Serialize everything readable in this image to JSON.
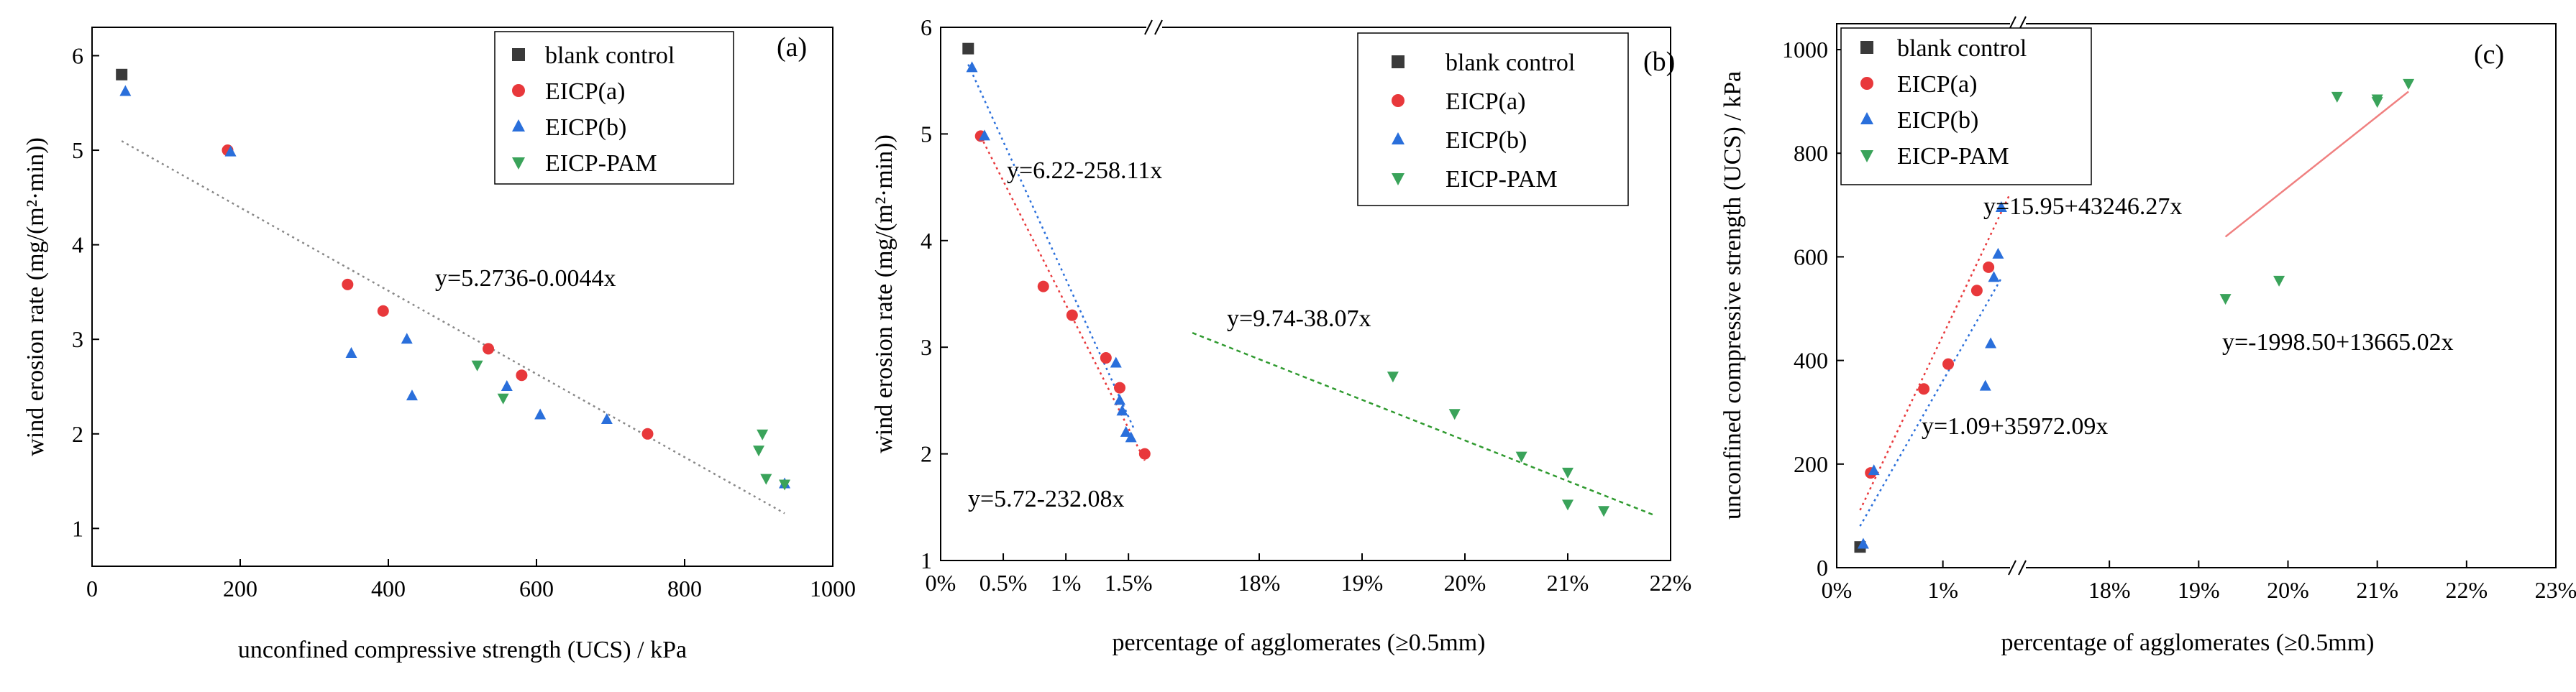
{
  "colors": {
    "blank_control": "#3a3a3a",
    "eicp_a": "#e8383b",
    "eicp_b": "#2a6fdb",
    "eicp_pam": "#3aa35a",
    "fit_gray": "#888888",
    "fit_red": "#e8383b",
    "fit_blue": "#2a6fdb",
    "fit_green": "#2f9a2f",
    "fit_pink": "#f08080"
  },
  "chart_data": [
    {
      "panel": "(a)",
      "type": "scatter",
      "xlabel": "unconfined compressive strength (UCS) / kPa",
      "ylabel": "wind erosion rate (mg/(m²·min))",
      "xlim": [
        0,
        1000
      ],
      "ylim": [
        0.6,
        6.3
      ],
      "xticks": [
        0,
        200,
        400,
        600,
        800,
        1000
      ],
      "yticks": [
        1,
        2,
        3,
        4,
        5,
        6
      ],
      "legend_position": "top-right",
      "legend": [
        "blank control",
        "EICP(a)",
        "EICP(b)",
        "EICP-PAM"
      ],
      "series": [
        {
          "name": "blank control",
          "marker": "square",
          "points": [
            [
              40,
              5.8
            ]
          ]
        },
        {
          "name": "EICP(a)",
          "marker": "circle",
          "points": [
            [
              183,
              5.0
            ],
            [
              345,
              3.58
            ],
            [
              393,
              3.3
            ],
            [
              535,
              2.9
            ],
            [
              580,
              2.62
            ],
            [
              750,
              2.0
            ]
          ]
        },
        {
          "name": "EICP(b)",
          "marker": "triangle-up",
          "points": [
            [
              45,
              5.62
            ],
            [
              187,
              4.98
            ],
            [
              350,
              2.85
            ],
            [
              425,
              3.0
            ],
            [
              432,
              2.4
            ],
            [
              560,
              2.5
            ],
            [
              605,
              2.2
            ],
            [
              695,
              2.15
            ],
            [
              935,
              1.47
            ]
          ]
        },
        {
          "name": "EICP-PAM",
          "marker": "triangle-down",
          "points": [
            [
              520,
              2.73
            ],
            [
              555,
              2.38
            ],
            [
              900,
              1.83
            ],
            [
              905,
              2.0
            ],
            [
              910,
              1.53
            ],
            [
              935,
              1.47
            ]
          ]
        }
      ],
      "fits": [
        {
          "label": "y=5.2736-0.0044x",
          "x_range": [
            40,
            935
          ],
          "intercept": 5.2736,
          "slope": -0.0044,
          "style": "dotted",
          "color_key": "fit_gray"
        }
      ]
    },
    {
      "panel": "(b)",
      "type": "scatter",
      "xlabel": "percentage of agglomerates (≥0.5mm)",
      "ylabel": "wind erosion rate (mg/(m²·min))",
      "x_segments": [
        [
          0.0,
          0.017
        ],
        [
          0.17,
          0.22
        ]
      ],
      "ylim": [
        1,
        6
      ],
      "xticks": [
        "0%",
        "0.5%",
        "1%",
        "1.5%",
        "18%",
        "19%",
        "20%",
        "21%",
        "22%"
      ],
      "xtick_values": [
        0.0,
        0.005,
        0.01,
        0.015,
        0.18,
        0.19,
        0.2,
        0.21,
        0.22
      ],
      "yticks": [
        1,
        2,
        3,
        4,
        5,
        6
      ],
      "legend_position": "top-right",
      "legend": [
        "blank control",
        "EICP(a)",
        "EICP(b)",
        "EICP-PAM"
      ],
      "series": [
        {
          "name": "blank control",
          "marker": "square",
          "points": [
            [
              0.0022,
              5.8
            ]
          ]
        },
        {
          "name": "EICP(a)",
          "marker": "circle",
          "points": [
            [
              0.0032,
              4.98
            ],
            [
              0.0082,
              3.57
            ],
            [
              0.0105,
              3.3
            ],
            [
              0.0132,
              2.9
            ],
            [
              0.0143,
              2.62
            ],
            [
              0.0163,
              2.0
            ]
          ]
        },
        {
          "name": "EICP(b)",
          "marker": "triangle-up",
          "points": [
            [
              0.0025,
              5.62
            ],
            [
              0.0035,
              4.98
            ],
            [
              0.014,
              2.85
            ],
            [
              0.0143,
              2.5
            ],
            [
              0.0145,
              2.4
            ],
            [
              0.0148,
              2.2
            ],
            [
              0.0152,
              2.15
            ]
          ]
        },
        {
          "name": "EICP-PAM",
          "marker": "triangle-down",
          "points": [
            [
              0.193,
              2.73
            ],
            [
              0.199,
              2.38
            ],
            [
              0.2055,
              1.98
            ],
            [
              0.21,
              1.83
            ],
            [
              0.21,
              1.53
            ],
            [
              0.2135,
              1.47
            ]
          ]
        }
      ],
      "fits": [
        {
          "label": "y=6.22-258.11x",
          "x_range": [
            0.0022,
            0.0155
          ],
          "intercept": 6.22,
          "slope": -258.11,
          "style": "dotted",
          "color_key": "fit_blue"
        },
        {
          "label": "y=5.72-232.08x",
          "x_range": [
            0.003,
            0.0163
          ],
          "intercept": 5.72,
          "slope": -232.08,
          "style": "dotted",
          "color_key": "fit_red"
        },
        {
          "label": "y=9.74-38.07x",
          "x_range": [
            0.1735,
            0.2185
          ],
          "intercept": 9.74,
          "slope": -38.07,
          "style": "dotted",
          "color_key": "fit_green"
        }
      ]
    },
    {
      "panel": "(c)",
      "type": "scatter",
      "xlabel": "percentage of agglomerates (≥0.5mm)",
      "ylabel": "unconfined compressive strength (UCS) / kPa",
      "x_segments": [
        [
          0.0,
          0.017
        ],
        [
          0.17,
          0.23
        ]
      ],
      "ylim": [
        0,
        1050
      ],
      "xticks": [
        "0%",
        "1%",
        "18%",
        "19%",
        "20%",
        "21%",
        "22%",
        "23%"
      ],
      "xtick_values": [
        0.0,
        0.01,
        0.18,
        0.19,
        0.2,
        0.21,
        0.22,
        0.23
      ],
      "yticks": [
        0,
        200,
        400,
        600,
        800,
        1000
      ],
      "legend_position": "top-left",
      "legend": [
        "blank control",
        "EICP(a)",
        "EICP(b)",
        "EICP-PAM"
      ],
      "series": [
        {
          "name": "blank control",
          "marker": "square",
          "points": [
            [
              0.0022,
              40
            ]
          ]
        },
        {
          "name": "EICP(a)",
          "marker": "circle",
          "points": [
            [
              0.0032,
              183
            ],
            [
              0.0082,
              345
            ],
            [
              0.0105,
              393
            ],
            [
              0.0132,
              535
            ],
            [
              0.0143,
              580
            ],
            [
              0.0163,
              750
            ]
          ]
        },
        {
          "name": "EICP(b)",
          "marker": "triangle-up",
          "points": [
            [
              0.0025,
              45
            ],
            [
              0.0035,
              187
            ],
            [
              0.014,
              350
            ],
            [
              0.0145,
              432
            ],
            [
              0.0148,
              560
            ],
            [
              0.0152,
              605
            ],
            [
              0.0155,
              695
            ]
          ]
        },
        {
          "name": "EICP-PAM",
          "marker": "triangle-down",
          "points": [
            [
              0.193,
              520
            ],
            [
              0.199,
              555
            ],
            [
              0.2055,
              910
            ],
            [
              0.21,
              905
            ],
            [
              0.21,
              900
            ],
            [
              0.2135,
              935
            ]
          ]
        }
      ],
      "fits": [
        {
          "label": "y=15.95+43246.27x",
          "x_range": [
            0.0022,
            0.0163
          ],
          "intercept": 15.95,
          "slope": 43246.27,
          "style": "dotted",
          "color_key": "fit_red"
        },
        {
          "label": "y=1.09+35972.09x",
          "x_range": [
            0.0022,
            0.0155
          ],
          "intercept": 1.09,
          "slope": 35972.09,
          "style": "dotted",
          "color_key": "fit_blue"
        },
        {
          "label": "y=-1998.50+13665.02x",
          "x_range": [
            0.193,
            0.2135
          ],
          "intercept": -1998.5,
          "slope": 13665.02,
          "style": "solid",
          "color_key": "fit_pink"
        }
      ]
    }
  ]
}
